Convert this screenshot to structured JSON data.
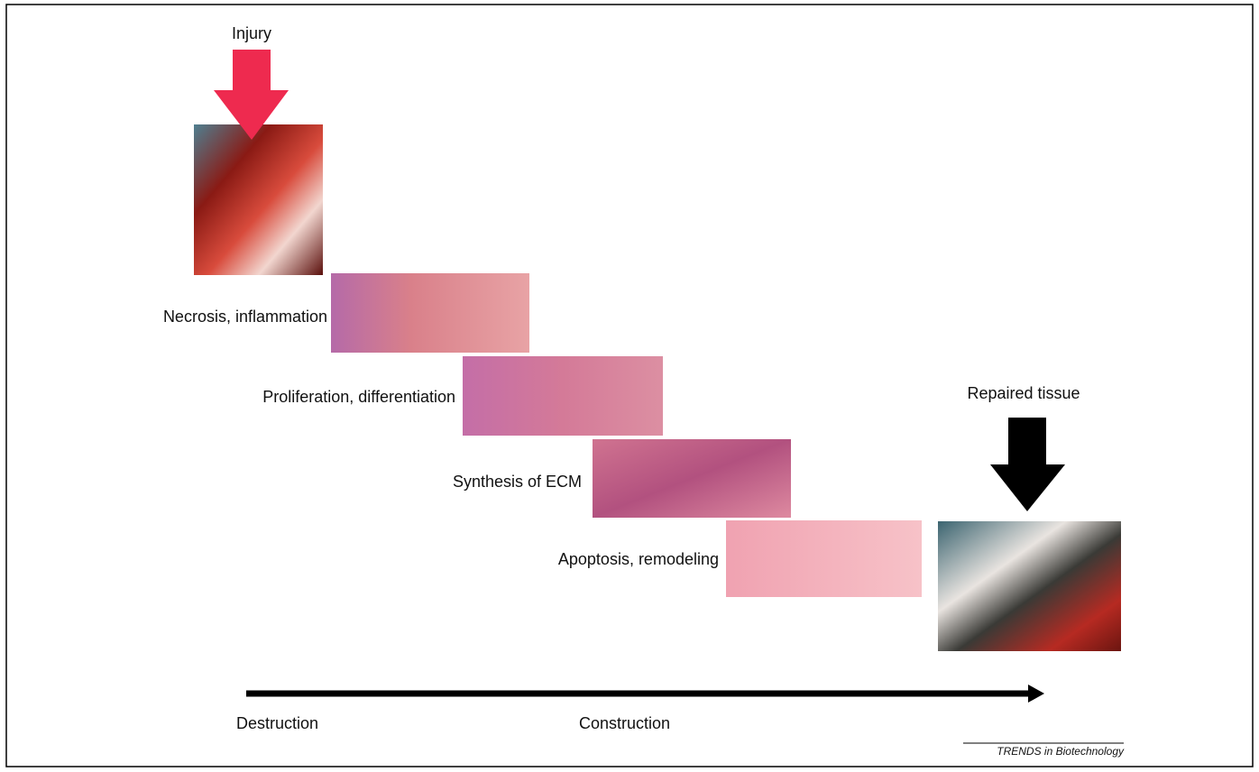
{
  "injury_label": "Injury",
  "stages": [
    {
      "label": "Necrosis, inflammation"
    },
    {
      "label": "Proliferation, differentiation"
    },
    {
      "label": "Synthesis of ECM"
    },
    {
      "label": "Apoptosis, remodeling"
    }
  ],
  "repaired_label": "Repaired tissue",
  "timeline": {
    "start": "Destruction",
    "middle": "Construction"
  },
  "credit": "TRENDS in Biotechnology"
}
